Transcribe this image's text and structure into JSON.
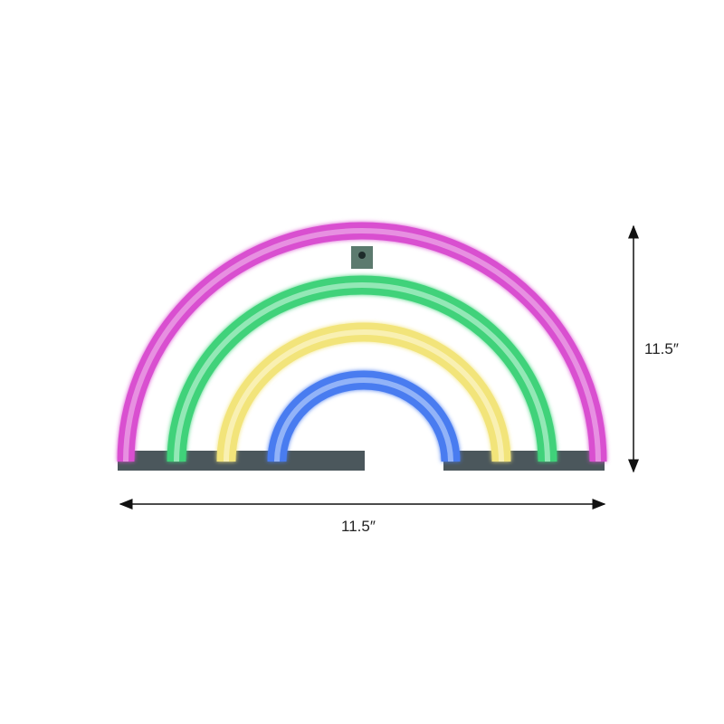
{
  "product": {
    "description_visible": "",
    "colors": {
      "outer_arc": "#d94fd0",
      "second_arc": "#3fd27a",
      "third_arc": "#f2e47a",
      "inner_arc": "#4a7cf0",
      "base": "#2b3a40"
    }
  },
  "dimensions": {
    "height_label": "11.5″",
    "width_label": "11.5″"
  }
}
